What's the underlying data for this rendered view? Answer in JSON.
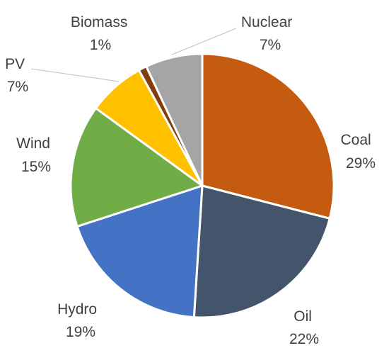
{
  "chart_data": {
    "type": "pie",
    "title": "",
    "start_angle_deg": 0,
    "direction": "clockwise",
    "slices": [
      {
        "label": "Coal",
        "value": 29,
        "display": "29%",
        "color": "#C55A11"
      },
      {
        "label": "Oil",
        "value": 22,
        "display": "22%",
        "color": "#44546A"
      },
      {
        "label": "Hydro",
        "value": 19,
        "display": "19%",
        "color": "#4472C4"
      },
      {
        "label": "Wind",
        "value": 15,
        "display": "15%",
        "color": "#70AD47"
      },
      {
        "label": "PV",
        "value": 7,
        "display": "7%",
        "color": "#FFC000"
      },
      {
        "label": "Biomass",
        "value": 1,
        "display": "1%",
        "color": "#843C0C"
      },
      {
        "label": "Nuclear",
        "value": 7,
        "display": "7%",
        "color": "#A5A5A5"
      }
    ]
  }
}
